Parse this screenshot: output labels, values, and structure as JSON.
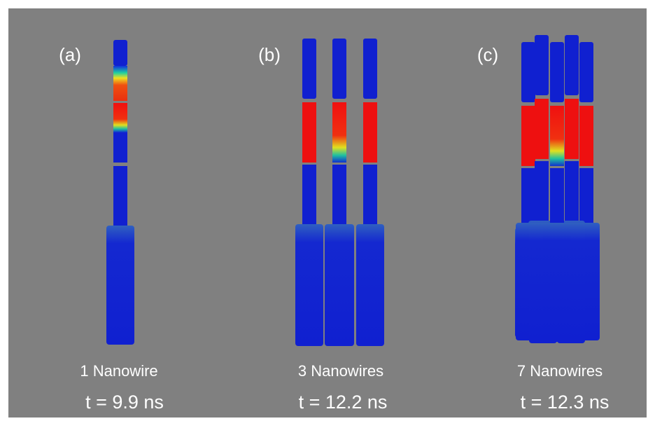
{
  "panels": [
    {
      "label": "(a)",
      "caption": "1 Nanowire",
      "time": "t = 9.9 ns"
    },
    {
      "label": "(b)",
      "caption": "3 Nanowires",
      "time": "t = 12.2 ns"
    },
    {
      "label": "(c)",
      "caption": "7 Nanowires",
      "time": "t = 12.3 ns"
    }
  ]
}
